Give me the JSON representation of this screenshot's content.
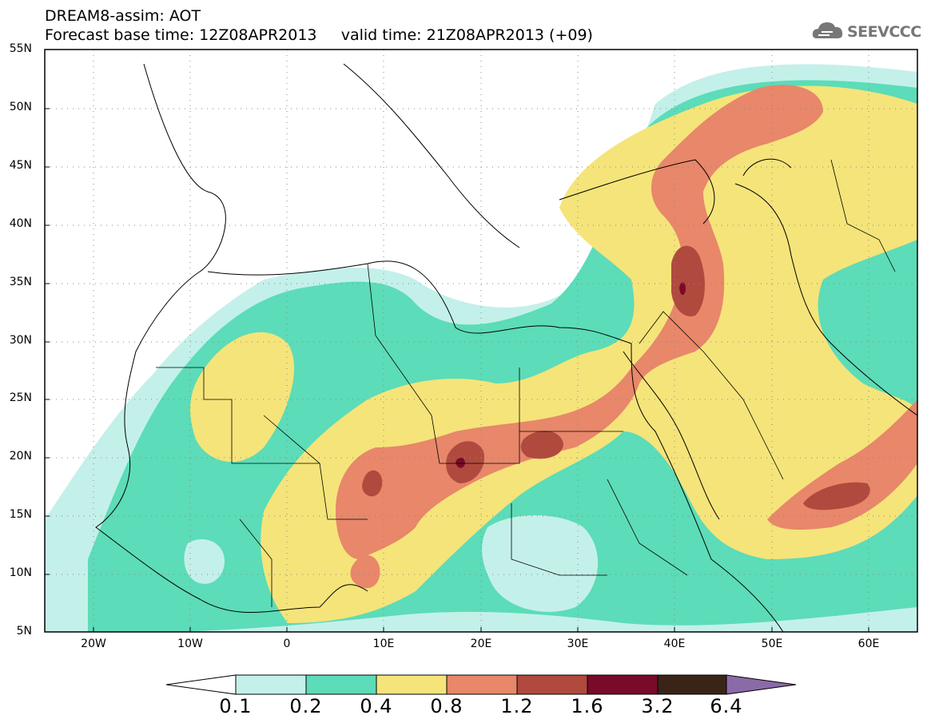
{
  "header": {
    "line1": "DREAM8-assim: AOT",
    "line2": "Forecast base time: 12Z08APR2013     valid time: 21Z08APR2013 (+09)"
  },
  "logo": {
    "text": "SEEVCCC",
    "icon": "cloud-icon"
  },
  "map": {
    "lat_labels": [
      "55N",
      "50N",
      "45N",
      "40N",
      "35N",
      "30N",
      "25N",
      "20N",
      "15N",
      "10N",
      "5N"
    ],
    "lon_labels": [
      "20W",
      "10W",
      "0",
      "10E",
      "20E",
      "30E",
      "40E",
      "50E",
      "60E"
    ],
    "lat_range": [
      5,
      55
    ],
    "lon_range": [
      -25,
      65
    ]
  },
  "legend": {
    "labels": [
      "0.1",
      "0.2",
      "0.4",
      "0.8",
      "1.2",
      "1.6",
      "3.2",
      "6.4"
    ],
    "colors": [
      "#c4f0ea",
      "#5cdcb8",
      "#f5e47a",
      "#e8876a",
      "#b04a3e",
      "#7a0a2a",
      "#3a2418",
      "#8b6aa8"
    ]
  }
}
